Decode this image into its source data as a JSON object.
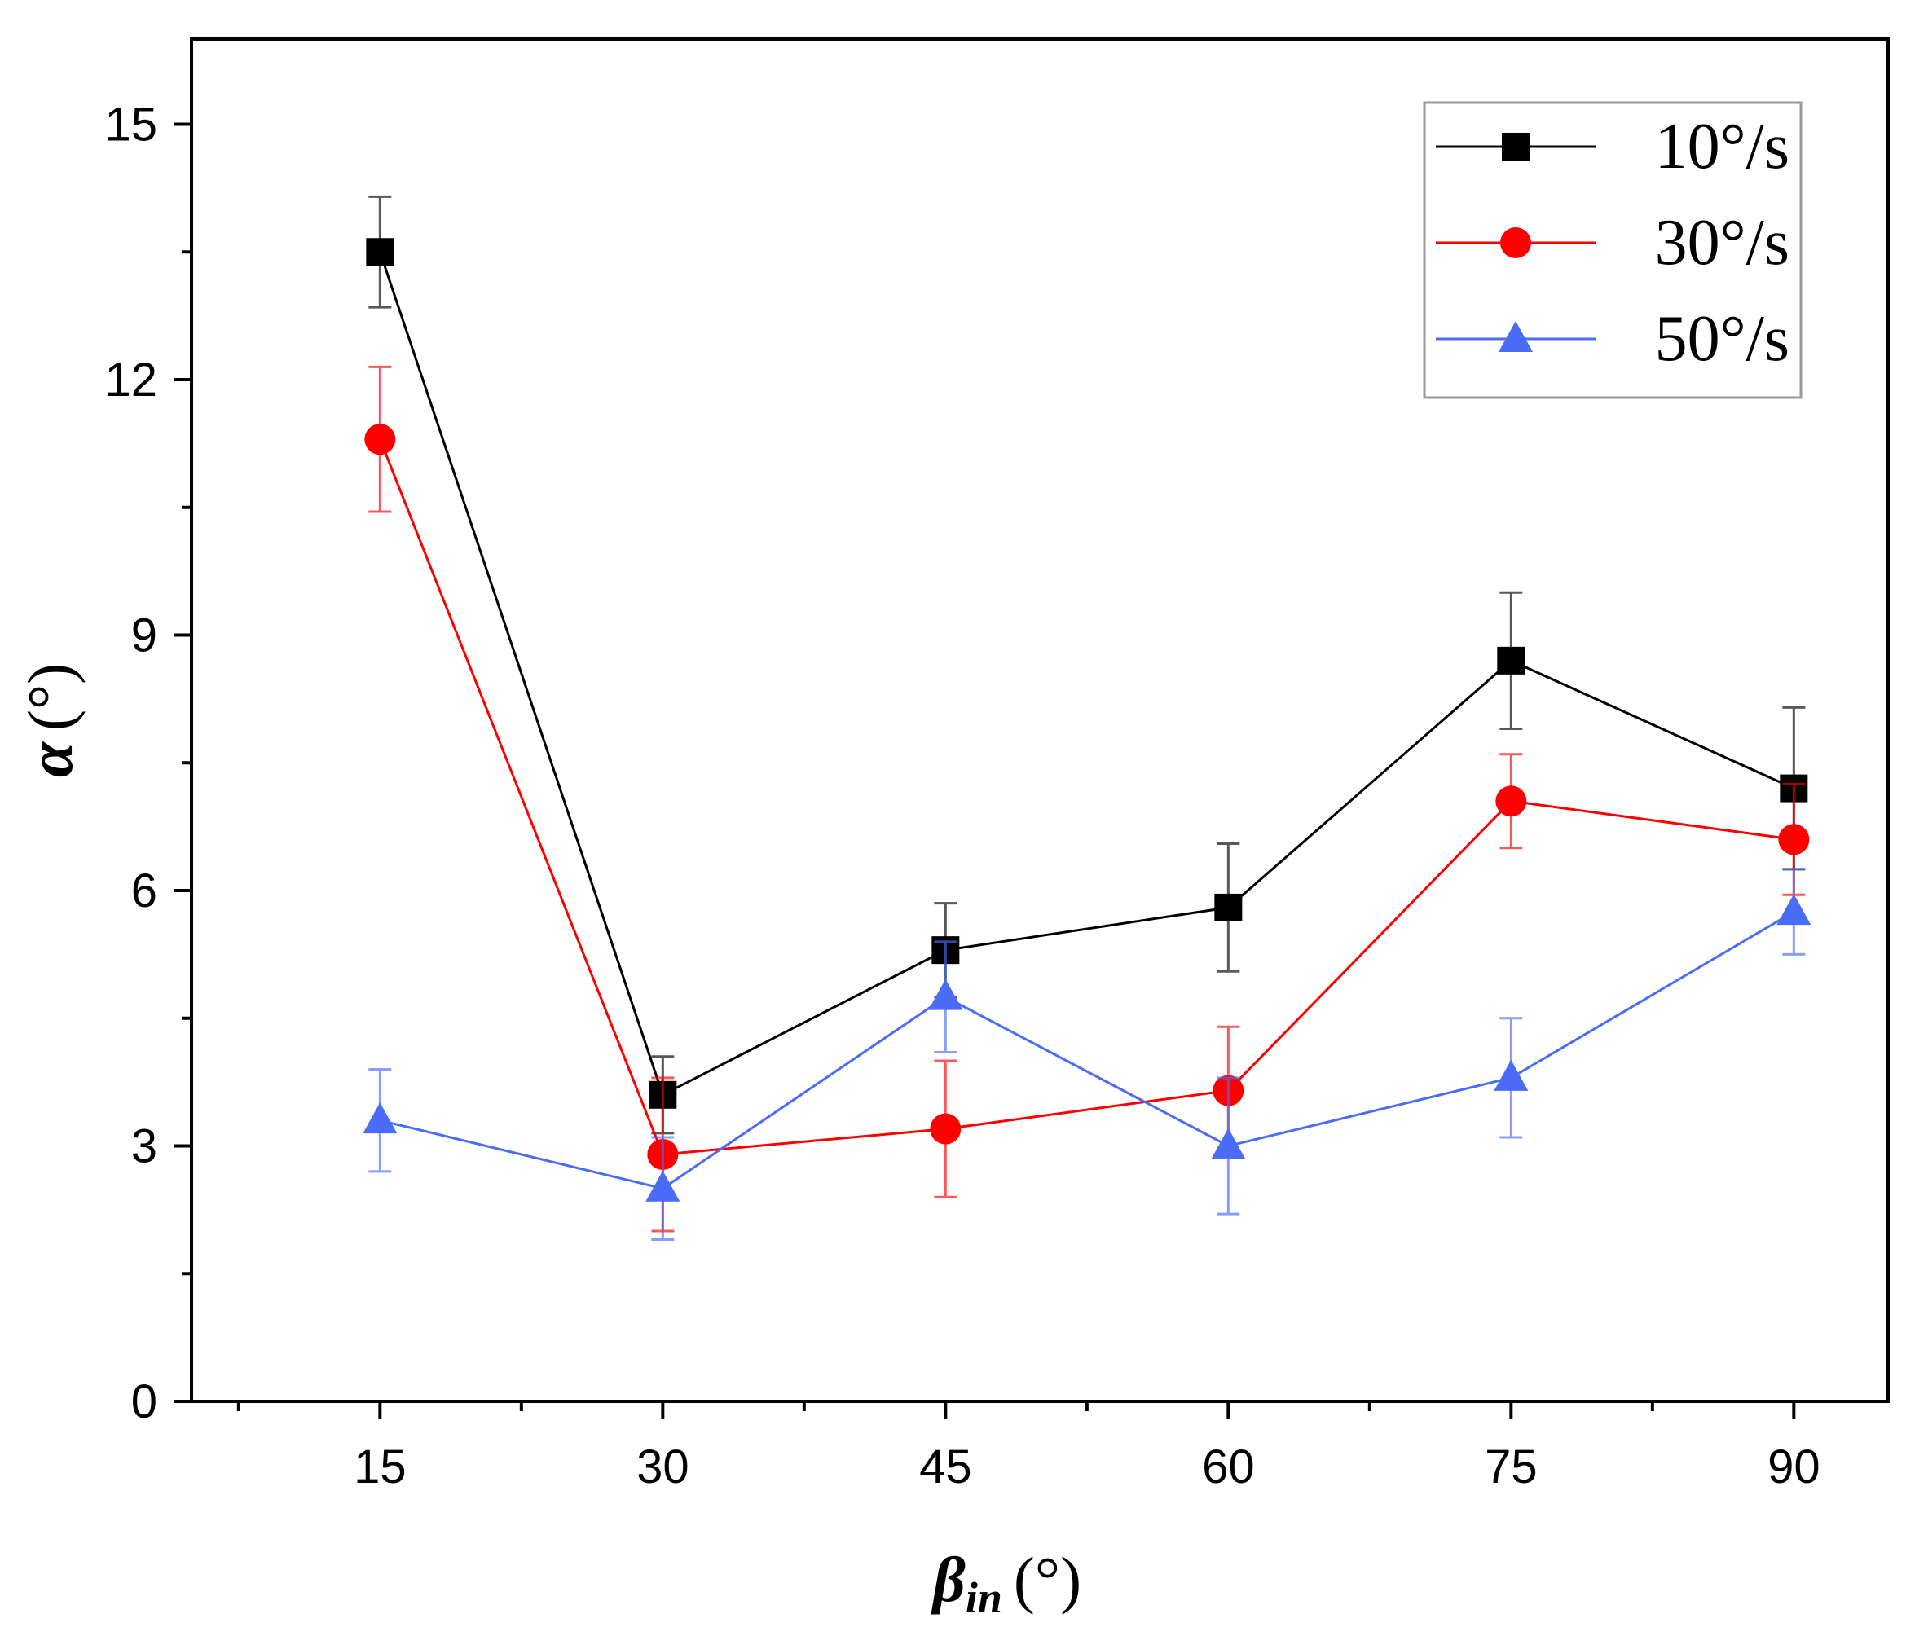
{
  "chart_data": {
    "type": "line",
    "title": "",
    "xlabel": {
      "symbol": "β",
      "subscript": "in",
      "unit": "(°)"
    },
    "ylabel": {
      "symbol": "α",
      "unit": "(°)"
    },
    "x": [
      15,
      30,
      45,
      60,
      75,
      90
    ],
    "xlim": [
      5,
      95
    ],
    "ylim": [
      0,
      16
    ],
    "xticks": [
      15,
      30,
      45,
      60,
      75,
      90
    ],
    "xtick_labels": [
      "15",
      "30",
      "45",
      "60",
      "75",
      "90"
    ],
    "yticks": [
      0,
      3,
      6,
      9,
      12,
      15
    ],
    "ytick_labels": [
      "0",
      "3",
      "6",
      "9",
      "12",
      "15"
    ],
    "grid": false,
    "legend_position": "top-right",
    "series": [
      {
        "name": "10°/s",
        "color": "#000000",
        "marker": "square",
        "values": [
          13.5,
          3.6,
          5.3,
          5.8,
          8.7,
          7.2
        ],
        "errors": [
          0.65,
          0.45,
          0.55,
          0.75,
          0.8,
          0.95
        ]
      },
      {
        "name": "30°/s",
        "color": "#ff0000",
        "marker": "circle",
        "values": [
          11.3,
          2.9,
          3.2,
          3.65,
          7.05,
          6.6
        ],
        "errors": [
          0.85,
          0.9,
          0.8,
          0.75,
          0.55,
          0.65
        ]
      },
      {
        "name": "50°/s",
        "color": "#4a6cf7",
        "marker": "triangle",
        "values": [
          3.3,
          2.5,
          4.75,
          3.0,
          3.8,
          5.75
        ],
        "errors": [
          0.6,
          0.6,
          0.65,
          0.8,
          0.7,
          0.5
        ]
      }
    ]
  }
}
